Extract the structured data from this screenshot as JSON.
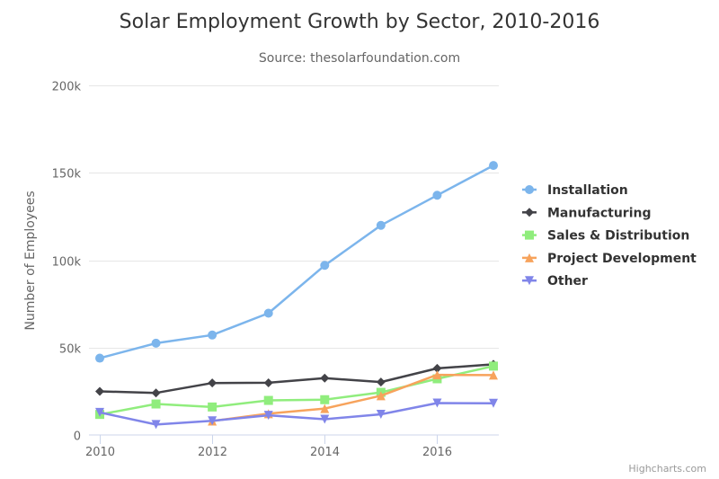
{
  "chart_data": {
    "type": "line",
    "title": "Solar Employment Growth by Sector, 2010-2016",
    "subtitle": "Source: thesolarfoundation.com",
    "xlabel": "",
    "ylabel": "Number of Employees",
    "x": [
      2010,
      2011,
      2012,
      2013,
      2014,
      2015,
      2016,
      2017
    ],
    "xlim": [
      2010,
      2017
    ],
    "x_ticks": [
      2010,
      2012,
      2014,
      2016
    ],
    "x_tick_labels": [
      "2010",
      "2012",
      "2014",
      "2016"
    ],
    "ylim": [
      0,
      200000
    ],
    "y_ticks": [
      0,
      50000,
      100000,
      150000,
      200000
    ],
    "y_tick_labels": [
      "0",
      "50k",
      "100k",
      "150k",
      "200k"
    ],
    "grid": true,
    "legend_position": "right",
    "series": [
      {
        "name": "Installation",
        "color": "#7cb5ec",
        "marker": "circle",
        "values": [
          43934,
          52503,
          57177,
          69658,
          97031,
          119931,
          137133,
          154175
        ]
      },
      {
        "name": "Manufacturing",
        "color": "#434348",
        "marker": "diamond",
        "values": [
          24916,
          24064,
          29742,
          29851,
          32490,
          30282,
          38121,
          40434
        ]
      },
      {
        "name": "Sales & Distribution",
        "color": "#90ed7d",
        "marker": "square",
        "values": [
          11744,
          17722,
          16005,
          19771,
          20185,
          24377,
          32147,
          39387
        ]
      },
      {
        "name": "Project Development",
        "color": "#f7a35c",
        "marker": "triangle",
        "values": [
          null,
          null,
          7988,
          12169,
          15112,
          22452,
          34400,
          34227
        ]
      },
      {
        "name": "Other",
        "color": "#8085e9",
        "marker": "triangle-down",
        "values": [
          12908,
          5948,
          8105,
          11248,
          8989,
          11816,
          18274,
          18111
        ]
      }
    ]
  },
  "credits": "Highcharts.com"
}
